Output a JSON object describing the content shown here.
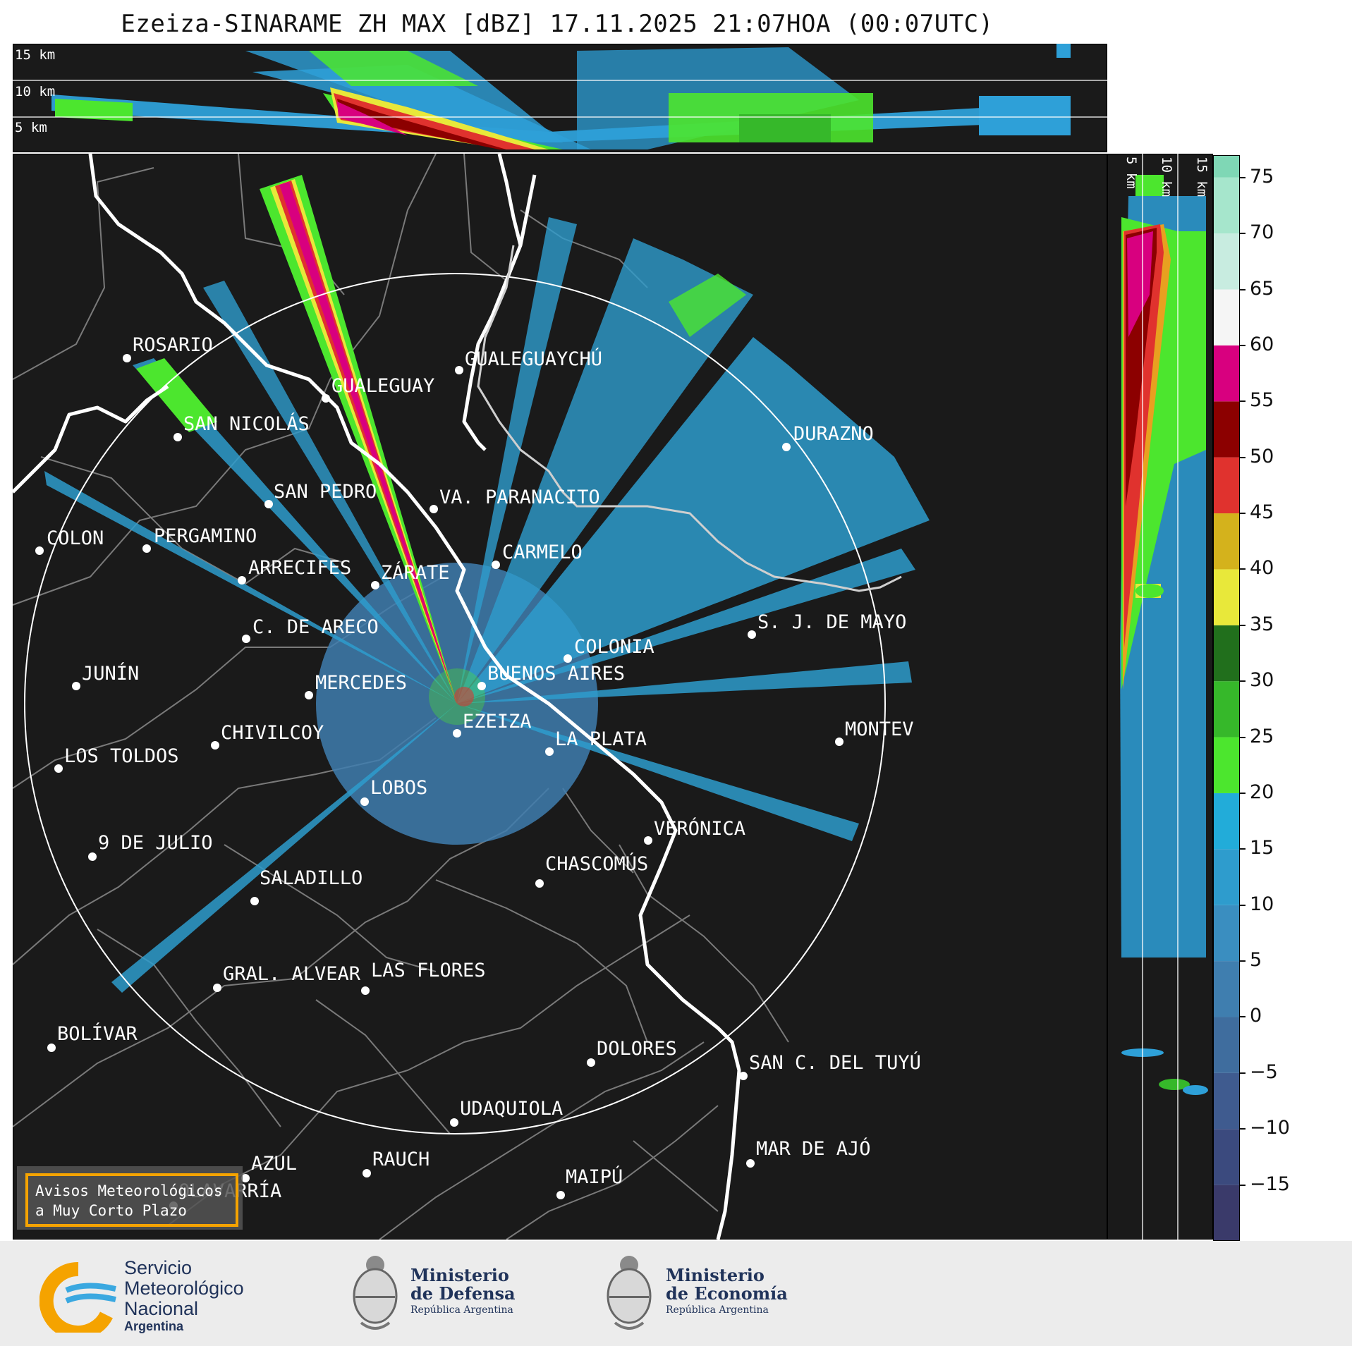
{
  "title": "Ezeiza-SINARAME ZH MAX [dBZ] 17.11.2025 21:07HOA (00:07UTC)",
  "top_panel": {
    "altitude_labels": [
      "15 km",
      "10 km",
      "5 km"
    ]
  },
  "side_panel": {
    "altitude_labels": [
      "5 km",
      "10 km",
      "15 km"
    ]
  },
  "colorbar": {
    "unit": "dBZ",
    "ticks": [
      "75",
      "70",
      "65",
      "60",
      "55",
      "50",
      "45",
      "40",
      "35",
      "30",
      "25",
      "20",
      "15",
      "10",
      "5",
      "0",
      "−5",
      "−10",
      "−15"
    ],
    "colors": {
      "-20": "#3a3a6a",
      "-15": "#3b4a7e",
      "-10": "#3f5b8f",
      "-5": "#3f6d9e",
      "0": "#3f7eaf",
      "5": "#3a8ec0",
      "10": "#2e9ccd",
      "15": "#22acd9",
      "20": "#4ce62e",
      "25": "#36b82a",
      "30": "#216f1c",
      "35": "#e8e83a",
      "40": "#d4b21c",
      "45": "#e0322e",
      "50": "#8c0000",
      "55": "#d8007f",
      "60": "#f5f5f5",
      "65": "#c8ece0",
      "70": "#a6e6cc",
      "75": "#7fd7b5"
    }
  },
  "cities": [
    {
      "name": "ROSARIO"
    },
    {
      "name": "GUALEGUAYCHÚ"
    },
    {
      "name": "GUALEGUAY"
    },
    {
      "name": "SAN NICOLÁS"
    },
    {
      "name": "DURAZNO"
    },
    {
      "name": "SAN PEDRO"
    },
    {
      "name": "VA. PARANACITO"
    },
    {
      "name": "COLON"
    },
    {
      "name": "PERGAMINO"
    },
    {
      "name": "CARMELO"
    },
    {
      "name": "ARRECIFES"
    },
    {
      "name": "ZÁRATE"
    },
    {
      "name": "S. J. DE MAYO"
    },
    {
      "name": "C. DE ARECO"
    },
    {
      "name": "COLONIA"
    },
    {
      "name": "JUNÍN"
    },
    {
      "name": "BUENOS AIRES"
    },
    {
      "name": "MERCEDES"
    },
    {
      "name": "EZEIZA"
    },
    {
      "name": "CHIVILCOY"
    },
    {
      "name": "MONTEV"
    },
    {
      "name": "LA PLATA"
    },
    {
      "name": "LOS TOLDOS"
    },
    {
      "name": "LOBOS"
    },
    {
      "name": "VERÓNICA"
    },
    {
      "name": "9 DE JULIO"
    },
    {
      "name": "CHASCOMÚS"
    },
    {
      "name": "SALADILLO"
    },
    {
      "name": "GRAL. ALVEAR"
    },
    {
      "name": "LAS FLORES"
    },
    {
      "name": "BOLÍVAR"
    },
    {
      "name": "DOLORES"
    },
    {
      "name": "SAN C. DEL TUYÚ"
    },
    {
      "name": "UDAQUIOLA"
    },
    {
      "name": "MAR DE AJÓ"
    },
    {
      "name": "AZUL"
    },
    {
      "name": "RAUCH"
    },
    {
      "name": "OLAVARRÍA"
    },
    {
      "name": "MAIPÚ"
    }
  ],
  "alerts_box": {
    "line1": "Avisos Meteorológicos",
    "line2": "a Muy Corto Plazo"
  },
  "footer": {
    "smn": {
      "line1": "Servicio",
      "line2": "Meteorológico",
      "line3": "Nacional",
      "line4": "Argentina"
    },
    "defensa": {
      "line1": "Ministerio",
      "line2": "de Defensa",
      "line3": "República Argentina"
    },
    "economia": {
      "line1": "Ministerio",
      "line2": "de Economía",
      "line3": "República Argentina"
    }
  }
}
